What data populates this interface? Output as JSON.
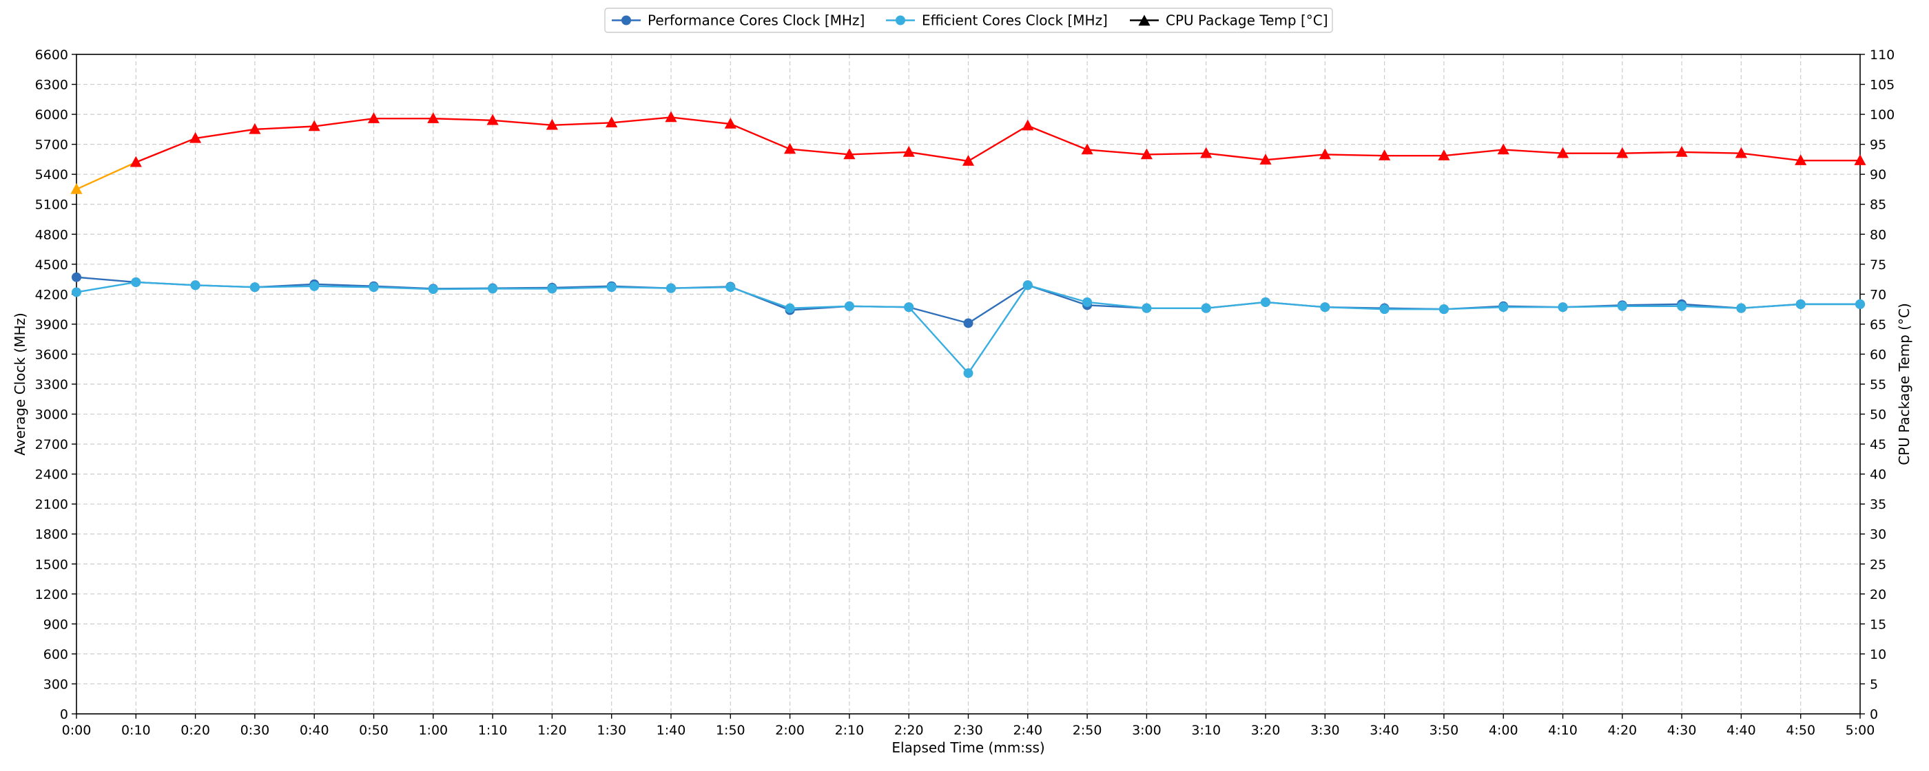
{
  "chart_data": {
    "type": "line",
    "x_ticks": [
      "0:00",
      "0:10",
      "0:20",
      "0:30",
      "0:40",
      "0:50",
      "1:00",
      "1:10",
      "1:20",
      "1:30",
      "1:40",
      "1:50",
      "2:00",
      "2:10",
      "2:20",
      "2:30",
      "2:40",
      "2:50",
      "3:00",
      "3:10",
      "3:20",
      "3:30",
      "3:40",
      "3:50",
      "4:00",
      "4:10",
      "4:20",
      "4:30",
      "4:40",
      "4:50",
      "5:00"
    ],
    "xlabel": "Elapsed Time (mm:ss)",
    "ylabel_left": "Average Clock (MHz)",
    "ylabel_right": "CPU Package Temp (°C)",
    "ylim_left": [
      0,
      6600
    ],
    "ylim_right": [
      0,
      110
    ],
    "yticks_left": [
      0,
      300,
      600,
      900,
      1200,
      1500,
      1800,
      2100,
      2400,
      2700,
      3000,
      3300,
      3600,
      3900,
      4200,
      4500,
      4800,
      5100,
      5400,
      5700,
      6000,
      6300,
      6600
    ],
    "yticks_right": [
      0,
      5,
      10,
      15,
      20,
      25,
      30,
      35,
      40,
      45,
      50,
      55,
      60,
      65,
      70,
      75,
      80,
      85,
      90,
      95,
      100,
      105,
      110
    ],
    "grid": true,
    "legend_position": "top-center",
    "series": [
      {
        "name": "Performance Cores Clock [MHz]",
        "axis": "left",
        "color": "#2f6fba",
        "marker": "circle",
        "values": [
          4370,
          4320,
          4290,
          4270,
          4300,
          4280,
          4255,
          4260,
          4265,
          4280,
          4260,
          4275,
          4040,
          4080,
          4070,
          3910,
          4290,
          4090,
          4060,
          4060,
          4120,
          4070,
          4060,
          4050,
          4080,
          4070,
          4090,
          4100,
          4060,
          4100,
          4100
        ]
      },
      {
        "name": "Efficient Cores Clock [MHz]",
        "axis": "left",
        "color": "#38aee0",
        "marker": "circle",
        "values": [
          4220,
          4320,
          4290,
          4270,
          4280,
          4270,
          4250,
          4255,
          4255,
          4270,
          4260,
          4270,
          4060,
          4080,
          4070,
          3410,
          4290,
          4120,
          4060,
          4060,
          4120,
          4070,
          4050,
          4050,
          4070,
          4070,
          4080,
          4080,
          4060,
          4100,
          4100
        ]
      },
      {
        "name": "CPU Package Temp [°C]",
        "axis": "right",
        "color": "#ff0000",
        "early_color": "#ffa500",
        "marker": "triangle",
        "legend_color": "#000000",
        "values": [
          87.5,
          92,
          96,
          97.5,
          98,
          99.3,
          99.3,
          99,
          98.2,
          98.6,
          99.5,
          98.4,
          94.2,
          93.3,
          93.7,
          92.2,
          98.1,
          94.1,
          93.3,
          93.5,
          92.4,
          93.3,
          93.1,
          93.1,
          94.1,
          93.5,
          93.5,
          93.7,
          93.5,
          92.3,
          92.3
        ]
      }
    ]
  }
}
